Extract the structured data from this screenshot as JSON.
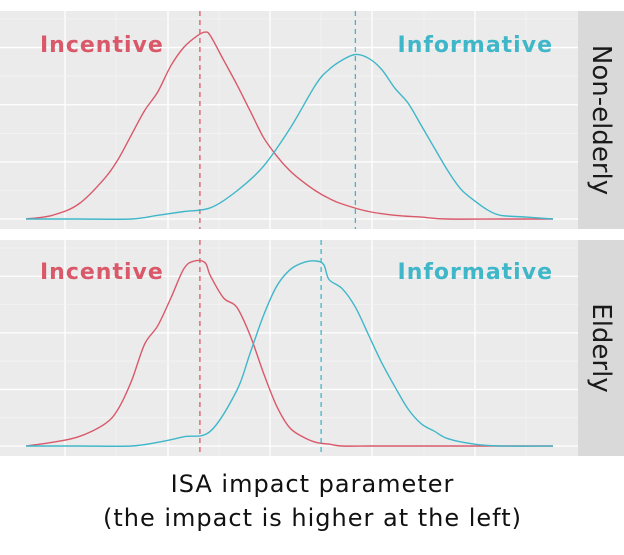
{
  "colors": {
    "incentive": "#d9596a",
    "informative": "#3fb7c9"
  },
  "caption": {
    "line1": "ISA impact parameter",
    "line2": "(the impact is higher at the left)"
  },
  "chart_data": [
    {
      "type": "area",
      "facet": "Non-elderly",
      "xlim": [
        -10,
        10
      ],
      "ylim": [
        0,
        1.07
      ],
      "grid": true,
      "series": [
        {
          "name": "Incentive",
          "color": "#d9596a",
          "mean_line": -3.4,
          "x": [
            -10,
            -9,
            -8,
            -7,
            -6.5,
            -6,
            -5.5,
            -5,
            -4.5,
            -4,
            -3.5,
            -3.2,
            -3,
            -2.5,
            -2,
            -1.5,
            -1,
            -0.5,
            0,
            0.5,
            1,
            1.5,
            2,
            3,
            4,
            5,
            6,
            8,
            10
          ],
          "y": [
            0.0,
            0.02,
            0.08,
            0.22,
            0.32,
            0.45,
            0.58,
            0.68,
            0.82,
            0.92,
            0.98,
            1.0,
            0.98,
            0.85,
            0.72,
            0.58,
            0.44,
            0.34,
            0.26,
            0.2,
            0.15,
            0.11,
            0.08,
            0.04,
            0.02,
            0.01,
            0.0,
            0.0,
            0.0
          ]
        },
        {
          "name": "Informative",
          "color": "#3fb7c9",
          "mean_line": 2.5,
          "x": [
            -10,
            -8,
            -6,
            -5,
            -4,
            -3,
            -2,
            -1,
            0,
            1,
            1.5,
            2,
            2.5,
            3,
            3.5,
            4,
            4.5,
            5,
            5.5,
            6,
            6.5,
            7,
            7.5,
            8,
            9,
            10
          ],
          "y": [
            0.0,
            0.0,
            0.0,
            0.02,
            0.04,
            0.06,
            0.15,
            0.28,
            0.48,
            0.72,
            0.8,
            0.85,
            0.88,
            0.86,
            0.8,
            0.7,
            0.62,
            0.5,
            0.38,
            0.26,
            0.16,
            0.1,
            0.05,
            0.02,
            0.01,
            0.0
          ]
        }
      ]
    },
    {
      "type": "area",
      "facet": "Elderly",
      "xlim": [
        -10,
        10
      ],
      "ylim": [
        0,
        1.07
      ],
      "grid": true,
      "series": [
        {
          "name": "Incentive",
          "color": "#d9596a",
          "mean_line": -3.4,
          "x": [
            -10,
            -9,
            -8,
            -7,
            -6.5,
            -6,
            -5.5,
            -5,
            -4.5,
            -4,
            -3.6,
            -3.2,
            -3,
            -2.5,
            -2,
            -1.5,
            -1,
            -0.5,
            0,
            0.5,
            1,
            1.5,
            2,
            3,
            4,
            6,
            10
          ],
          "y": [
            0.0,
            0.02,
            0.05,
            0.12,
            0.2,
            0.35,
            0.55,
            0.65,
            0.8,
            0.96,
            1.0,
            0.99,
            0.92,
            0.8,
            0.75,
            0.6,
            0.4,
            0.22,
            0.1,
            0.05,
            0.02,
            0.01,
            0.0,
            0.0,
            0.0,
            0.0,
            0.0
          ]
        },
        {
          "name": "Informative",
          "color": "#3fb7c9",
          "mean_line": 1.2,
          "x": [
            -10,
            -8,
            -6,
            -5,
            -4,
            -3,
            -2,
            -1.5,
            -1,
            -0.5,
            0,
            0.5,
            1,
            1.3,
            1.5,
            2,
            2.5,
            3,
            3.5,
            4,
            4.5,
            5,
            5.5,
            6,
            7,
            8,
            10
          ],
          "y": [
            0.0,
            0.0,
            0.0,
            0.02,
            0.05,
            0.08,
            0.3,
            0.5,
            0.7,
            0.86,
            0.95,
            0.99,
            1.0,
            0.98,
            0.9,
            0.85,
            0.75,
            0.6,
            0.45,
            0.32,
            0.2,
            0.12,
            0.08,
            0.04,
            0.01,
            0.0,
            0.0
          ]
        }
      ]
    }
  ]
}
